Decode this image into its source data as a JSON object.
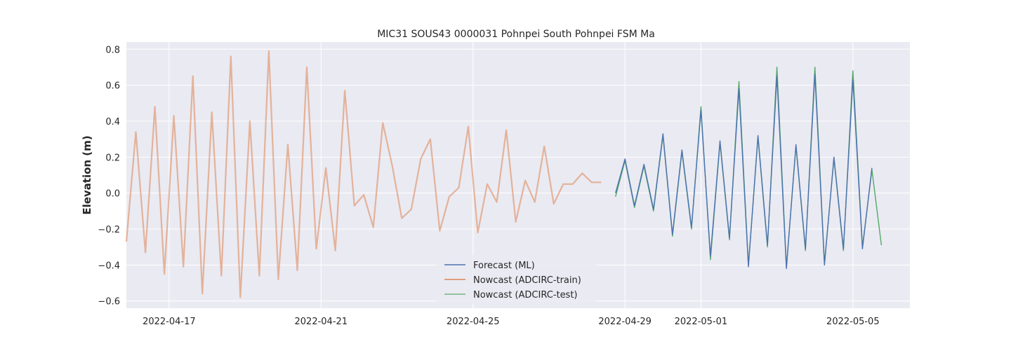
{
  "chart_data": {
    "type": "line",
    "title": "MIC31 SOUS43 0000031 Pohnpei South Pohnpei FSM Ma",
    "xlabel": "",
    "ylabel": "Elevation (m)",
    "xlim": [
      "2022-04-15T21:00",
      "2022-05-06T12:00"
    ],
    "ylim": [
      -0.64,
      0.84
    ],
    "grid": true,
    "legend_position": "bottom-center",
    "x_ticks": [
      "2022-04-17",
      "2022-04-21",
      "2022-04-25",
      "2022-04-29",
      "2022-05-01",
      "2022-05-05"
    ],
    "y_ticks": [
      -0.6,
      -0.4,
      -0.2,
      0.0,
      0.2,
      0.4,
      0.6,
      0.8
    ],
    "y_tick_labels": [
      "−0.6",
      "−0.4",
      "−0.2",
      "0.0",
      "0.2",
      "0.4",
      "0.6",
      "0.8"
    ],
    "series": [
      {
        "name": "Forecast (ML)",
        "color": "#4c72b0",
        "x": [
          "2022-04-28T18:00",
          "2022-04-29T00:00",
          "2022-04-29T06:00",
          "2022-04-29T12:00",
          "2022-04-29T18:00",
          "2022-04-30T00:00",
          "2022-04-30T06:00",
          "2022-04-30T12:00",
          "2022-04-30T18:00",
          "2022-05-01T00:00",
          "2022-05-01T06:00",
          "2022-05-01T12:00",
          "2022-05-01T18:00",
          "2022-05-02T00:00",
          "2022-05-02T06:00",
          "2022-05-02T12:00",
          "2022-05-02T18:00",
          "2022-05-03T00:00",
          "2022-05-03T06:00",
          "2022-05-03T12:00",
          "2022-05-03T18:00",
          "2022-05-04T00:00",
          "2022-05-04T06:00",
          "2022-05-04T12:00",
          "2022-05-04T18:00",
          "2022-05-05T00:00",
          "2022-05-05T06:00",
          "2022-05-05T12:00"
        ],
        "values": [
          0.0,
          0.19,
          -0.07,
          0.16,
          -0.09,
          0.33,
          -0.23,
          0.24,
          -0.19,
          0.46,
          -0.35,
          0.29,
          -0.25,
          0.58,
          -0.41,
          0.32,
          -0.29,
          0.65,
          -0.42,
          0.27,
          -0.31,
          0.66,
          -0.4,
          0.2,
          -0.31,
          0.63,
          -0.31,
          0.14
        ]
      },
      {
        "name": "Nowcast (ADCIRC-train)",
        "color": "#dd8452",
        "x": [
          "2022-04-15T21:00",
          "2022-04-16T03:00",
          "2022-04-16T09:00",
          "2022-04-16T15:00",
          "2022-04-16T21:00",
          "2022-04-17T03:00",
          "2022-04-17T09:00",
          "2022-04-17T15:00",
          "2022-04-17T21:00",
          "2022-04-18T03:00",
          "2022-04-18T09:00",
          "2022-04-18T15:00",
          "2022-04-18T21:00",
          "2022-04-19T03:00",
          "2022-04-19T09:00",
          "2022-04-19T15:00",
          "2022-04-19T21:00",
          "2022-04-20T03:00",
          "2022-04-20T09:00",
          "2022-04-20T15:00",
          "2022-04-20T21:00",
          "2022-04-21T03:00",
          "2022-04-21T09:00",
          "2022-04-21T15:00",
          "2022-04-21T21:00",
          "2022-04-22T03:00",
          "2022-04-22T09:00",
          "2022-04-22T15:00",
          "2022-04-22T21:00",
          "2022-04-23T03:00",
          "2022-04-23T09:00",
          "2022-04-23T15:00",
          "2022-04-23T21:00",
          "2022-04-24T03:00",
          "2022-04-24T09:00",
          "2022-04-24T15:00",
          "2022-04-24T21:00",
          "2022-04-25T03:00",
          "2022-04-25T09:00",
          "2022-04-25T15:00",
          "2022-04-25T21:00",
          "2022-04-26T03:00",
          "2022-04-26T09:00",
          "2022-04-26T15:00",
          "2022-04-26T21:00",
          "2022-04-27T03:00",
          "2022-04-27T09:00",
          "2022-04-27T15:00",
          "2022-04-27T21:00",
          "2022-04-28T03:00",
          "2022-04-28T09:00"
        ],
        "values": [
          -0.27,
          0.34,
          -0.33,
          0.48,
          -0.45,
          0.43,
          -0.41,
          0.65,
          -0.56,
          0.45,
          -0.46,
          0.76,
          -0.58,
          0.4,
          -0.46,
          0.79,
          -0.48,
          0.27,
          -0.43,
          0.7,
          -0.31,
          0.14,
          -0.32,
          0.57,
          -0.07,
          -0.01,
          -0.19,
          0.39,
          0.15,
          -0.14,
          -0.09,
          0.19,
          0.3,
          -0.21,
          -0.02,
          0.03,
          0.37,
          -0.22,
          0.05,
          -0.05,
          0.35,
          -0.16,
          0.07,
          -0.05,
          0.26,
          -0.06,
          0.05,
          0.05,
          0.11,
          0.06,
          0.06
        ]
      },
      {
        "name": "Nowcast (ADCIRC-test)",
        "color": "#55a868",
        "x": [
          "2022-04-28T18:00",
          "2022-04-29T00:00",
          "2022-04-29T06:00",
          "2022-04-29T12:00",
          "2022-04-29T18:00",
          "2022-04-30T00:00",
          "2022-04-30T06:00",
          "2022-04-30T12:00",
          "2022-04-30T18:00",
          "2022-05-01T00:00",
          "2022-05-01T06:00",
          "2022-05-01T12:00",
          "2022-05-01T18:00",
          "2022-05-02T00:00",
          "2022-05-02T06:00",
          "2022-05-02T12:00",
          "2022-05-02T18:00",
          "2022-05-03T00:00",
          "2022-05-03T06:00",
          "2022-05-03T12:00",
          "2022-05-03T18:00",
          "2022-05-04T00:00",
          "2022-05-04T06:00",
          "2022-05-04T12:00",
          "2022-05-04T18:00",
          "2022-05-05T00:00",
          "2022-05-05T06:00",
          "2022-05-05T12:00",
          "2022-05-05T18:00"
        ],
        "values": [
          -0.02,
          0.18,
          -0.08,
          0.15,
          -0.1,
          0.32,
          -0.24,
          0.23,
          -0.2,
          0.48,
          -0.37,
          0.28,
          -0.26,
          0.62,
          -0.4,
          0.31,
          -0.3,
          0.7,
          -0.41,
          0.26,
          -0.32,
          0.7,
          -0.39,
          0.19,
          -0.32,
          0.68,
          -0.3,
          0.13,
          -0.29
        ]
      }
    ]
  }
}
